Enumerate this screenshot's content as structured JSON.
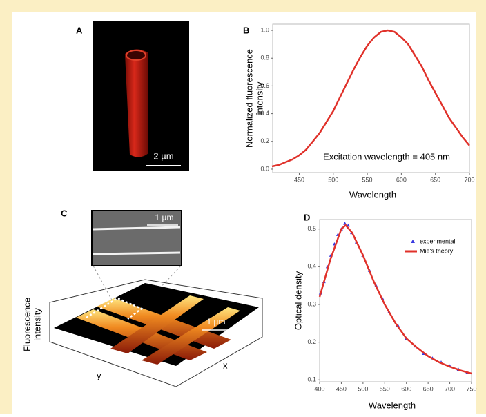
{
  "panels": {
    "a": {
      "label": "A",
      "scale_bar": "2 µm"
    },
    "c": {
      "label": "C",
      "inset_scale_bar": "1 µm",
      "surface_scale_bar": "1 µm",
      "zlabel": [
        "Fluorescence",
        "intensity"
      ],
      "xlabel": "x",
      "ylabel": "y"
    }
  },
  "chart_data": [
    {
      "type": "line",
      "panel_label": "B",
      "xlabel": "Wavelength",
      "ylabel": [
        "Normalized fluorescence",
        "intensity"
      ],
      "annotation": "Excitation wavelength = 405 nm",
      "xlim": [
        411,
        700
      ],
      "xticks": [
        450,
        500,
        550,
        600,
        650,
        700
      ],
      "ylim": [
        -0.025,
        1.045
      ],
      "yticks": [
        {
          "value": 0,
          "label": "0.0"
        },
        0.2,
        0.4,
        0.6,
        0.8,
        {
          "value": 1,
          "label": "1.0"
        }
      ],
      "series": [
        {
          "type": "line",
          "color": "#e0312a",
          "x": [
            410,
            420,
            430,
            440,
            450,
            460,
            470,
            480,
            490,
            500,
            510,
            520,
            530,
            540,
            550,
            560,
            570,
            580,
            590,
            600,
            610,
            620,
            630,
            640,
            650,
            660,
            670,
            680,
            690,
            700
          ],
          "values": [
            0.02,
            0.03,
            0.05,
            0.07,
            0.1,
            0.14,
            0.2,
            0.26,
            0.34,
            0.42,
            0.52,
            0.62,
            0.72,
            0.81,
            0.89,
            0.95,
            0.99,
            1.0,
            0.99,
            0.95,
            0.9,
            0.82,
            0.74,
            0.64,
            0.55,
            0.46,
            0.37,
            0.3,
            0.23,
            0.17
          ]
        }
      ]
    },
    {
      "type": "line",
      "panel_label": "D",
      "xlabel": "Wavelength",
      "ylabel": "Optical density",
      "xlim": [
        400,
        750
      ],
      "xticks": [
        400,
        450,
        500,
        550,
        600,
        650,
        700,
        750
      ],
      "ylim": [
        0.095,
        0.525
      ],
      "yticks": [
        0.1,
        0.2,
        0.3,
        0.4,
        0.5
      ],
      "series": [
        {
          "name": "experimental",
          "type": "scatter",
          "color": "#3a3ae0",
          "x": [
            402,
            410,
            418,
            426,
            434,
            442,
            450,
            458,
            466,
            474,
            485,
            500,
            515,
            530,
            545,
            560,
            580,
            600,
            620,
            640,
            660,
            680,
            700,
            720,
            740
          ],
          "values": [
            0.33,
            0.36,
            0.4,
            0.43,
            0.46,
            0.485,
            0.5,
            0.515,
            0.51,
            0.49,
            0.465,
            0.43,
            0.39,
            0.35,
            0.315,
            0.28,
            0.245,
            0.21,
            0.19,
            0.17,
            0.158,
            0.147,
            0.137,
            0.128,
            0.12
          ]
        },
        {
          "name": "Mie's theory",
          "type": "line",
          "color": "#e0312a",
          "x": [
            400,
            425,
            450,
            460,
            475,
            500,
            525,
            550,
            575,
            600,
            625,
            650,
            675,
            700,
            725,
            750
          ],
          "values": [
            0.32,
            0.42,
            0.5,
            0.51,
            0.49,
            0.43,
            0.36,
            0.3,
            0.25,
            0.21,
            0.185,
            0.163,
            0.147,
            0.135,
            0.125,
            0.117
          ]
        }
      ]
    }
  ]
}
